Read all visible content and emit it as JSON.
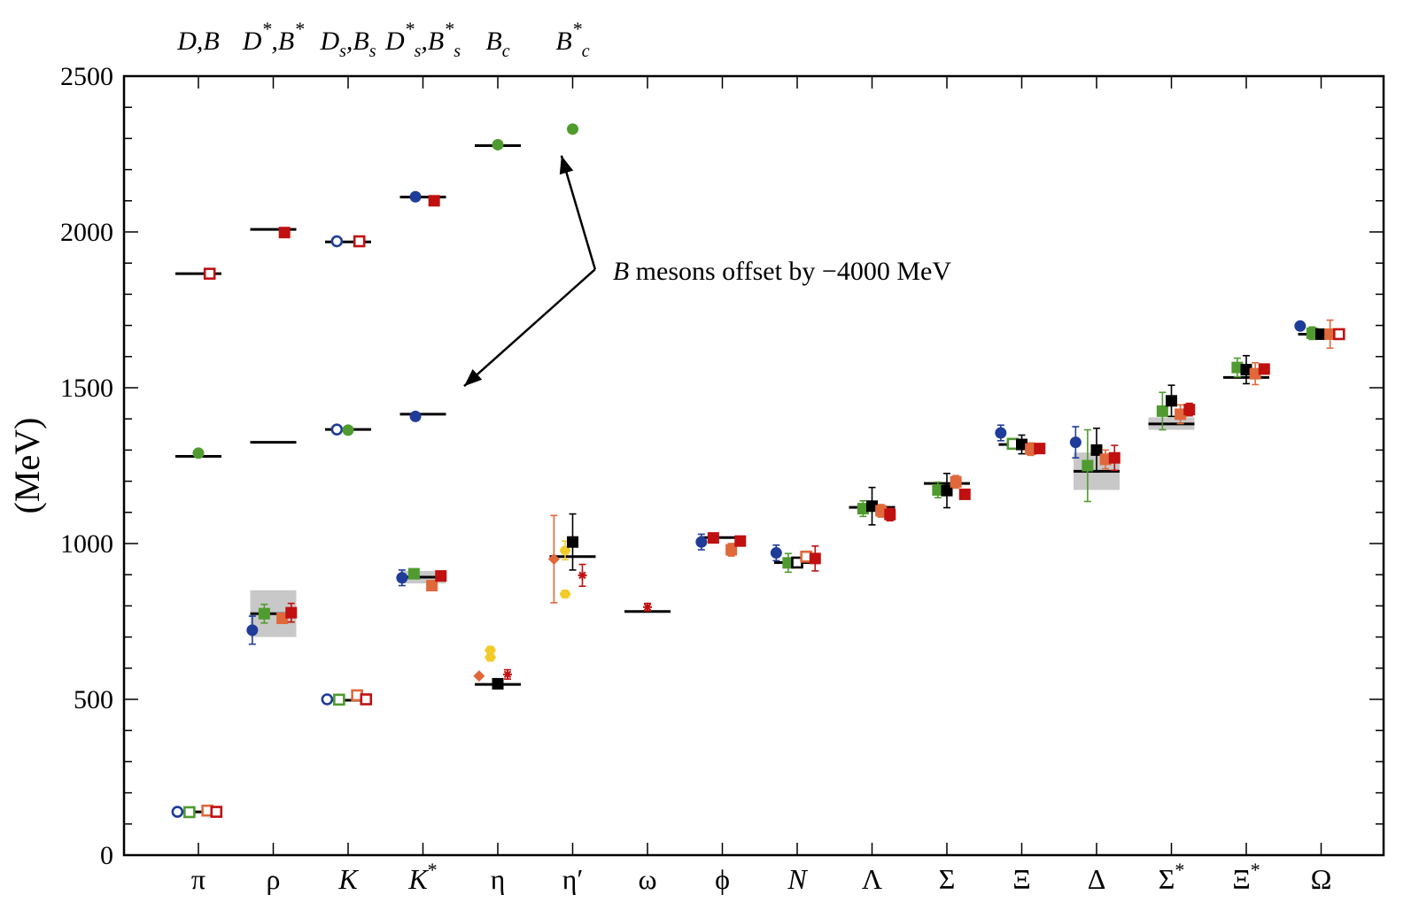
{
  "colors": {
    "blue": "#1f3c99",
    "green": "#4f9b2f",
    "orange": "#e0683a",
    "red": "#c01010",
    "black": "#000000",
    "yellow": "#f2cb2a",
    "band": "#c8c8c8"
  },
  "chart_data": {
    "type": "scatter",
    "ylabel": "(MeV)",
    "ylim": [
      0,
      2500
    ],
    "yticks": [
      0,
      500,
      1000,
      1500,
      2000,
      2500
    ],
    "categories": [
      {
        "base": "π",
        "sup": "",
        "italic": false
      },
      {
        "base": "ρ",
        "sup": "",
        "italic": false
      },
      {
        "base": "K",
        "sup": "",
        "italic": true
      },
      {
        "base": "K",
        "sup": "*",
        "italic": true
      },
      {
        "base": "η",
        "sup": "",
        "italic": false
      },
      {
        "base": "η′",
        "sup": "",
        "italic": false
      },
      {
        "base": "ω",
        "sup": "",
        "italic": false
      },
      {
        "base": "ϕ",
        "sup": "",
        "italic": false
      },
      {
        "base": "N",
        "sup": "",
        "italic": true
      },
      {
        "base": "Λ",
        "sup": "",
        "italic": false
      },
      {
        "base": "Σ",
        "sup": "",
        "italic": false
      },
      {
        "base": "Ξ",
        "sup": "",
        "italic": false
      },
      {
        "base": "Δ",
        "sup": "",
        "italic": false
      },
      {
        "base": "Σ",
        "sup": "*",
        "italic": false
      },
      {
        "base": "Ξ",
        "sup": "*",
        "italic": false
      },
      {
        "base": "Ω",
        "sup": "",
        "italic": false
      }
    ],
    "top_labels": [
      {
        "parts": [
          [
            "D,B",
            ""
          ]
        ],
        "x_index": 0
      },
      {
        "parts": [
          [
            "D",
            ""
          ],
          [
            "*",
            "sup"
          ],
          [
            ",B",
            ""
          ],
          [
            "*",
            "sup"
          ]
        ],
        "x_index": 1
      },
      {
        "parts": [
          [
            "D",
            ""
          ],
          [
            "s",
            "sub"
          ],
          [
            ",B",
            ""
          ],
          [
            "s",
            "sub"
          ]
        ],
        "x_index": 2
      },
      {
        "parts": [
          [
            "D",
            ""
          ],
          [
            "*",
            "sup"
          ],
          [
            "s",
            "sub"
          ],
          [
            ",B",
            ""
          ],
          [
            "*",
            "sup"
          ],
          [
            "s",
            "sub"
          ]
        ],
        "x_index": 3
      },
      {
        "parts": [
          [
            "B",
            ""
          ],
          [
            "c",
            "sub"
          ]
        ],
        "x_index": 4
      },
      {
        "parts": [
          [
            "B",
            ""
          ],
          [
            "*",
            "sup"
          ],
          [
            "c",
            "sub"
          ]
        ],
        "x_index": 5
      }
    ],
    "experiment": [
      {
        "cat": 0,
        "y": 139
      },
      {
        "cat": 0,
        "y": 1280
      },
      {
        "cat": 0,
        "y": 1866
      },
      {
        "cat": 1,
        "y": 775
      },
      {
        "cat": 1,
        "y": 1325
      },
      {
        "cat": 1,
        "y": 2008
      },
      {
        "cat": 2,
        "y": 497
      },
      {
        "cat": 2,
        "y": 1366
      },
      {
        "cat": 2,
        "y": 1968
      },
      {
        "cat": 3,
        "y": 892
      },
      {
        "cat": 3,
        "y": 1415
      },
      {
        "cat": 3,
        "y": 2112
      },
      {
        "cat": 4,
        "y": 548
      },
      {
        "cat": 4,
        "y": 2277
      },
      {
        "cat": 5,
        "y": 958
      },
      {
        "cat": 6,
        "y": 782
      },
      {
        "cat": 7,
        "y": 1019
      },
      {
        "cat": 8,
        "y": 939
      },
      {
        "cat": 9,
        "y": 1116
      },
      {
        "cat": 10,
        "y": 1193
      },
      {
        "cat": 11,
        "y": 1318
      },
      {
        "cat": 12,
        "y": 1232
      },
      {
        "cat": 13,
        "y": 1384
      },
      {
        "cat": 14,
        "y": 1533
      },
      {
        "cat": 15,
        "y": 1672
      }
    ],
    "bands": [
      {
        "cat": 1,
        "lo": 700,
        "hi": 850
      },
      {
        "cat": 3,
        "lo": 872,
        "hi": 912
      },
      {
        "cat": 12,
        "lo": 1172,
        "hi": 1292
      },
      {
        "cat": 13,
        "lo": 1365,
        "hi": 1405
      }
    ],
    "points": [
      {
        "cat": 0,
        "dx": -0.28,
        "y": 139,
        "color": "blue",
        "shape": "circle-open"
      },
      {
        "cat": 0,
        "dx": -0.12,
        "y": 138,
        "color": "green",
        "shape": "square-open"
      },
      {
        "cat": 0,
        "dx": 0.12,
        "y": 143,
        "color": "orange",
        "shape": "square-open"
      },
      {
        "cat": 0,
        "dx": 0.24,
        "y": 139,
        "color": "red",
        "shape": "square-open"
      },
      {
        "cat": 0,
        "dx": 0.0,
        "y": 1290,
        "err": 12,
        "color": "green",
        "shape": "circle"
      },
      {
        "cat": 0,
        "dx": 0.15,
        "y": 1866,
        "color": "red",
        "shape": "square-open"
      },
      {
        "cat": 1,
        "dx": -0.28,
        "y": 722,
        "err": 45,
        "color": "blue",
        "shape": "circle"
      },
      {
        "cat": 1,
        "dx": -0.12,
        "y": 775,
        "err": 30,
        "color": "green",
        "shape": "square"
      },
      {
        "cat": 1,
        "dx": 0.12,
        "y": 760,
        "err": 15,
        "color": "orange",
        "shape": "square"
      },
      {
        "cat": 1,
        "dx": 0.24,
        "y": 778,
        "err": 30,
        "color": "red",
        "shape": "square"
      },
      {
        "cat": 1,
        "dx": 0.15,
        "y": 1998,
        "color": "red",
        "shape": "square"
      },
      {
        "cat": 2,
        "dx": -0.28,
        "y": 500,
        "color": "blue",
        "shape": "circle-open"
      },
      {
        "cat": 2,
        "dx": -0.12,
        "y": 499,
        "color": "green",
        "shape": "square-open"
      },
      {
        "cat": 2,
        "dx": 0.12,
        "y": 513,
        "color": "orange",
        "shape": "square-open"
      },
      {
        "cat": 2,
        "dx": 0.24,
        "y": 500,
        "color": "red",
        "shape": "square-open"
      },
      {
        "cat": 2,
        "dx": -0.15,
        "y": 1366,
        "color": "blue",
        "shape": "circle-open"
      },
      {
        "cat": 2,
        "dx": 0.0,
        "y": 1364,
        "color": "green",
        "shape": "circle"
      },
      {
        "cat": 2,
        "dx": -0.15,
        "y": 1970,
        "color": "blue",
        "shape": "circle-open"
      },
      {
        "cat": 2,
        "dx": 0.15,
        "y": 1970,
        "color": "red",
        "shape": "square-open"
      },
      {
        "cat": 3,
        "dx": -0.28,
        "y": 890,
        "err": 25,
        "color": "blue",
        "shape": "circle"
      },
      {
        "cat": 3,
        "dx": -0.12,
        "y": 903,
        "color": "green",
        "shape": "square"
      },
      {
        "cat": 3,
        "dx": 0.12,
        "y": 865,
        "err": 15,
        "color": "orange",
        "shape": "square"
      },
      {
        "cat": 3,
        "dx": 0.24,
        "y": 896,
        "color": "red",
        "shape": "square"
      },
      {
        "cat": 3,
        "dx": -0.1,
        "y": 1408,
        "color": "blue",
        "shape": "circle"
      },
      {
        "cat": 3,
        "dx": -0.1,
        "y": 2113,
        "color": "blue",
        "shape": "circle"
      },
      {
        "cat": 3,
        "dx": 0.15,
        "y": 2100,
        "color": "red",
        "shape": "square"
      },
      {
        "cat": 4,
        "dx": -0.25,
        "y": 575,
        "color": "orange",
        "shape": "diamond"
      },
      {
        "cat": 4,
        "dx": -0.1,
        "y": 635,
        "color": "yellow",
        "shape": "hexagon"
      },
      {
        "cat": 4,
        "dx": -0.1,
        "y": 658,
        "color": "yellow",
        "shape": "hexagon"
      },
      {
        "cat": 4,
        "dx": 0.0,
        "y": 550,
        "color": "black",
        "shape": "square"
      },
      {
        "cat": 4,
        "dx": 0.13,
        "y": 580,
        "err": 15,
        "color": "red",
        "shape": "star"
      },
      {
        "cat": 4,
        "dx": 0.0,
        "y": 2280,
        "color": "green",
        "shape": "circle"
      },
      {
        "cat": 5,
        "dx": -0.25,
        "y": 950,
        "err": 140,
        "color": "orange",
        "shape": "diamond"
      },
      {
        "cat": 5,
        "dx": -0.1,
        "y": 978,
        "err": 30,
        "color": "yellow",
        "shape": "hexagon"
      },
      {
        "cat": 5,
        "dx": -0.1,
        "y": 838,
        "color": "yellow",
        "shape": "hexagon"
      },
      {
        "cat": 5,
        "dx": 0.0,
        "y": 1005,
        "err": 90,
        "color": "black",
        "shape": "square"
      },
      {
        "cat": 5,
        "dx": 0.13,
        "y": 898,
        "err": 35,
        "color": "red",
        "shape": "star"
      },
      {
        "cat": 5,
        "dx": 0.0,
        "y": 2330,
        "color": "green",
        "shape": "circle"
      },
      {
        "cat": 6,
        "dx": 0.0,
        "y": 796,
        "err": 12,
        "color": "red",
        "shape": "star"
      },
      {
        "cat": 7,
        "dx": -0.28,
        "y": 1005,
        "err": 25,
        "color": "blue",
        "shape": "circle"
      },
      {
        "cat": 7,
        "dx": -0.12,
        "y": 1018,
        "color": "red",
        "shape": "square"
      },
      {
        "cat": 7,
        "dx": 0.12,
        "y": 980,
        "err": 20,
        "color": "orange",
        "shape": "square"
      },
      {
        "cat": 7,
        "dx": 0.24,
        "y": 1008,
        "color": "red",
        "shape": "square"
      },
      {
        "cat": 8,
        "dx": -0.28,
        "y": 970,
        "err": 25,
        "color": "blue",
        "shape": "circle"
      },
      {
        "cat": 8,
        "dx": -0.12,
        "y": 938,
        "err": 30,
        "color": "green",
        "shape": "square"
      },
      {
        "cat": 8,
        "dx": 0.0,
        "y": 939,
        "color": "black",
        "shape": "square-open"
      },
      {
        "cat": 8,
        "dx": 0.12,
        "y": 958,
        "err": 15,
        "color": "orange",
        "shape": "square-open"
      },
      {
        "cat": 8,
        "dx": 0.24,
        "y": 952,
        "err": 40,
        "color": "red",
        "shape": "square"
      },
      {
        "cat": 9,
        "dx": -0.12,
        "y": 1112,
        "err": 25,
        "color": "green",
        "shape": "square"
      },
      {
        "cat": 9,
        "dx": 0.0,
        "y": 1120,
        "err": 60,
        "color": "black",
        "shape": "square"
      },
      {
        "cat": 9,
        "dx": 0.12,
        "y": 1105,
        "err": 20,
        "color": "orange",
        "shape": "square"
      },
      {
        "cat": 9,
        "dx": 0.24,
        "y": 1093,
        "err": 20,
        "color": "red",
        "shape": "square"
      },
      {
        "cat": 10,
        "dx": -0.12,
        "y": 1172,
        "err": 25,
        "color": "green",
        "shape": "square"
      },
      {
        "cat": 10,
        "dx": 0.0,
        "y": 1170,
        "err": 55,
        "color": "black",
        "shape": "square"
      },
      {
        "cat": 10,
        "dx": 0.12,
        "y": 1198,
        "err": 20,
        "color": "orange",
        "shape": "square"
      },
      {
        "cat": 10,
        "dx": 0.24,
        "y": 1158,
        "color": "red",
        "shape": "square"
      },
      {
        "cat": 11,
        "dx": -0.28,
        "y": 1355,
        "err": 25,
        "color": "blue",
        "shape": "circle"
      },
      {
        "cat": 11,
        "dx": -0.12,
        "y": 1320,
        "color": "green",
        "shape": "square-open"
      },
      {
        "cat": 11,
        "dx": 0.0,
        "y": 1318,
        "err": 30,
        "color": "black",
        "shape": "square"
      },
      {
        "cat": 11,
        "dx": 0.12,
        "y": 1303,
        "err": 20,
        "color": "orange",
        "shape": "square"
      },
      {
        "cat": 11,
        "dx": 0.24,
        "y": 1305,
        "color": "red",
        "shape": "square"
      },
      {
        "cat": 12,
        "dx": -0.28,
        "y": 1325,
        "err": 50,
        "color": "blue",
        "shape": "circle"
      },
      {
        "cat": 12,
        "dx": -0.12,
        "y": 1250,
        "err": 115,
        "color": "green",
        "shape": "square"
      },
      {
        "cat": 12,
        "dx": 0.0,
        "y": 1300,
        "err": 70,
        "color": "black",
        "shape": "square"
      },
      {
        "cat": 12,
        "dx": 0.12,
        "y": 1270,
        "err": 30,
        "color": "orange",
        "shape": "square"
      },
      {
        "cat": 12,
        "dx": 0.24,
        "y": 1275,
        "err": 40,
        "color": "red",
        "shape": "square"
      },
      {
        "cat": 13,
        "dx": -0.12,
        "y": 1425,
        "err": 60,
        "color": "green",
        "shape": "square"
      },
      {
        "cat": 13,
        "dx": 0.0,
        "y": 1458,
        "err": 50,
        "color": "black",
        "shape": "square"
      },
      {
        "cat": 13,
        "dx": 0.12,
        "y": 1415,
        "err": 30,
        "color": "orange",
        "shape": "square"
      },
      {
        "cat": 13,
        "dx": 0.24,
        "y": 1430,
        "err": 20,
        "color": "red",
        "shape": "square"
      },
      {
        "cat": 14,
        "dx": -0.12,
        "y": 1565,
        "err": 30,
        "color": "green",
        "shape": "square"
      },
      {
        "cat": 14,
        "dx": 0.0,
        "y": 1558,
        "err": 45,
        "color": "black",
        "shape": "square"
      },
      {
        "cat": 14,
        "dx": 0.12,
        "y": 1545,
        "err": 35,
        "color": "orange",
        "shape": "square"
      },
      {
        "cat": 14,
        "dx": 0.24,
        "y": 1560,
        "color": "red",
        "shape": "square"
      },
      {
        "cat": 15,
        "dx": -0.28,
        "y": 1698,
        "color": "blue",
        "shape": "circle"
      },
      {
        "cat": 15,
        "dx": -0.12,
        "y": 1675,
        "err": 20,
        "color": "green",
        "shape": "square"
      },
      {
        "cat": 15,
        "dx": 0.0,
        "y": 1672,
        "color": "black",
        "shape": "square"
      },
      {
        "cat": 15,
        "dx": 0.12,
        "y": 1672,
        "err": 45,
        "color": "orange",
        "shape": "square"
      },
      {
        "cat": 15,
        "dx": 0.24,
        "y": 1672,
        "color": "red",
        "shape": "square-open"
      }
    ],
    "annotation": {
      "text_italic": "B",
      "text_rest": " mesons offset by −4000 MeV",
      "arrow_targets": [
        {
          "cat": 4.85,
          "y": 2245
        },
        {
          "cat": 3.55,
          "y": 1505
        }
      ],
      "arrow_origin": {
        "cat": 5.3,
        "y": 1880
      }
    }
  }
}
